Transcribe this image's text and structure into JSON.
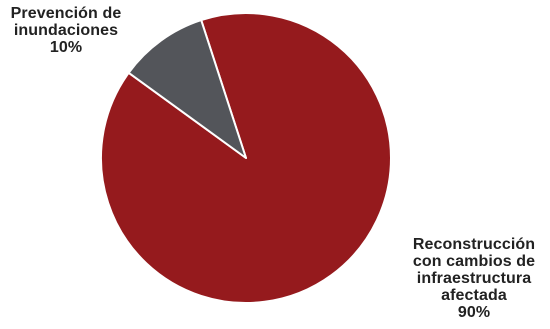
{
  "chart_data": {
    "type": "pie",
    "title": "",
    "slices": [
      {
        "label_lines": [
          "Reconstrucción",
          "con cambios de",
          "infraestructura",
          "afectada"
        ],
        "percent_label": "90%",
        "value": 90,
        "color": "#951a1d"
      },
      {
        "label_lines": [
          "Prevención de",
          "inundaciones"
        ],
        "percent_label": "10%",
        "value": 10,
        "color": "#53555a"
      }
    ],
    "start_angle_deg": -18,
    "border_color": "#ffffff",
    "legend": "none"
  }
}
